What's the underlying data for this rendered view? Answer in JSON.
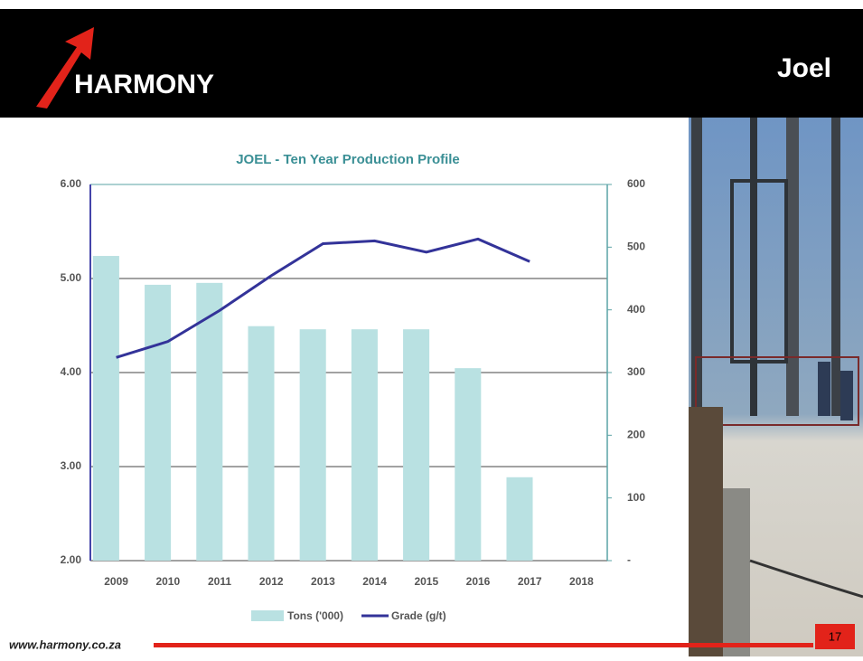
{
  "header": {
    "logo": "HARMONY",
    "title": "Joel"
  },
  "chart_data": {
    "type": "bar-line",
    "title": "JOEL - Ten Year Production Profile",
    "categories": [
      "2009",
      "2010",
      "2011",
      "2012",
      "2013",
      "2014",
      "2015",
      "2016",
      "2017",
      "2018"
    ],
    "series": [
      {
        "name": "Tons ('000)",
        "type": "bar",
        "axis": "y2",
        "color": "#b9e1e2",
        "values": [
          486,
          440,
          443,
          374,
          369,
          369,
          369,
          307,
          133,
          null
        ]
      },
      {
        "name": "Grade (g/t)",
        "type": "line",
        "color": "#333399",
        "values": [
          4.16,
          4.33,
          4.66,
          5.03,
          5.37,
          5.4,
          5.28,
          5.42,
          5.18,
          null
        ]
      }
    ],
    "ylim": [
      2,
      6
    ],
    "yticks": [
      {
        "value": 2,
        "label": "2.00"
      },
      {
        "value": 3,
        "label": "3.00"
      },
      {
        "value": 4,
        "label": "4.00"
      },
      {
        "value": 5,
        "label": "5.00"
      },
      {
        "value": 6,
        "label": "6.00"
      }
    ],
    "y2lim": [
      0,
      600
    ],
    "y2ticks": [
      {
        "value": 0,
        "label": "-"
      },
      100,
      200,
      300,
      400,
      500,
      600
    ],
    "grid": true,
    "legend": "bottom"
  },
  "footer": {
    "url": "www.harmony.co.za",
    "page": "17"
  }
}
